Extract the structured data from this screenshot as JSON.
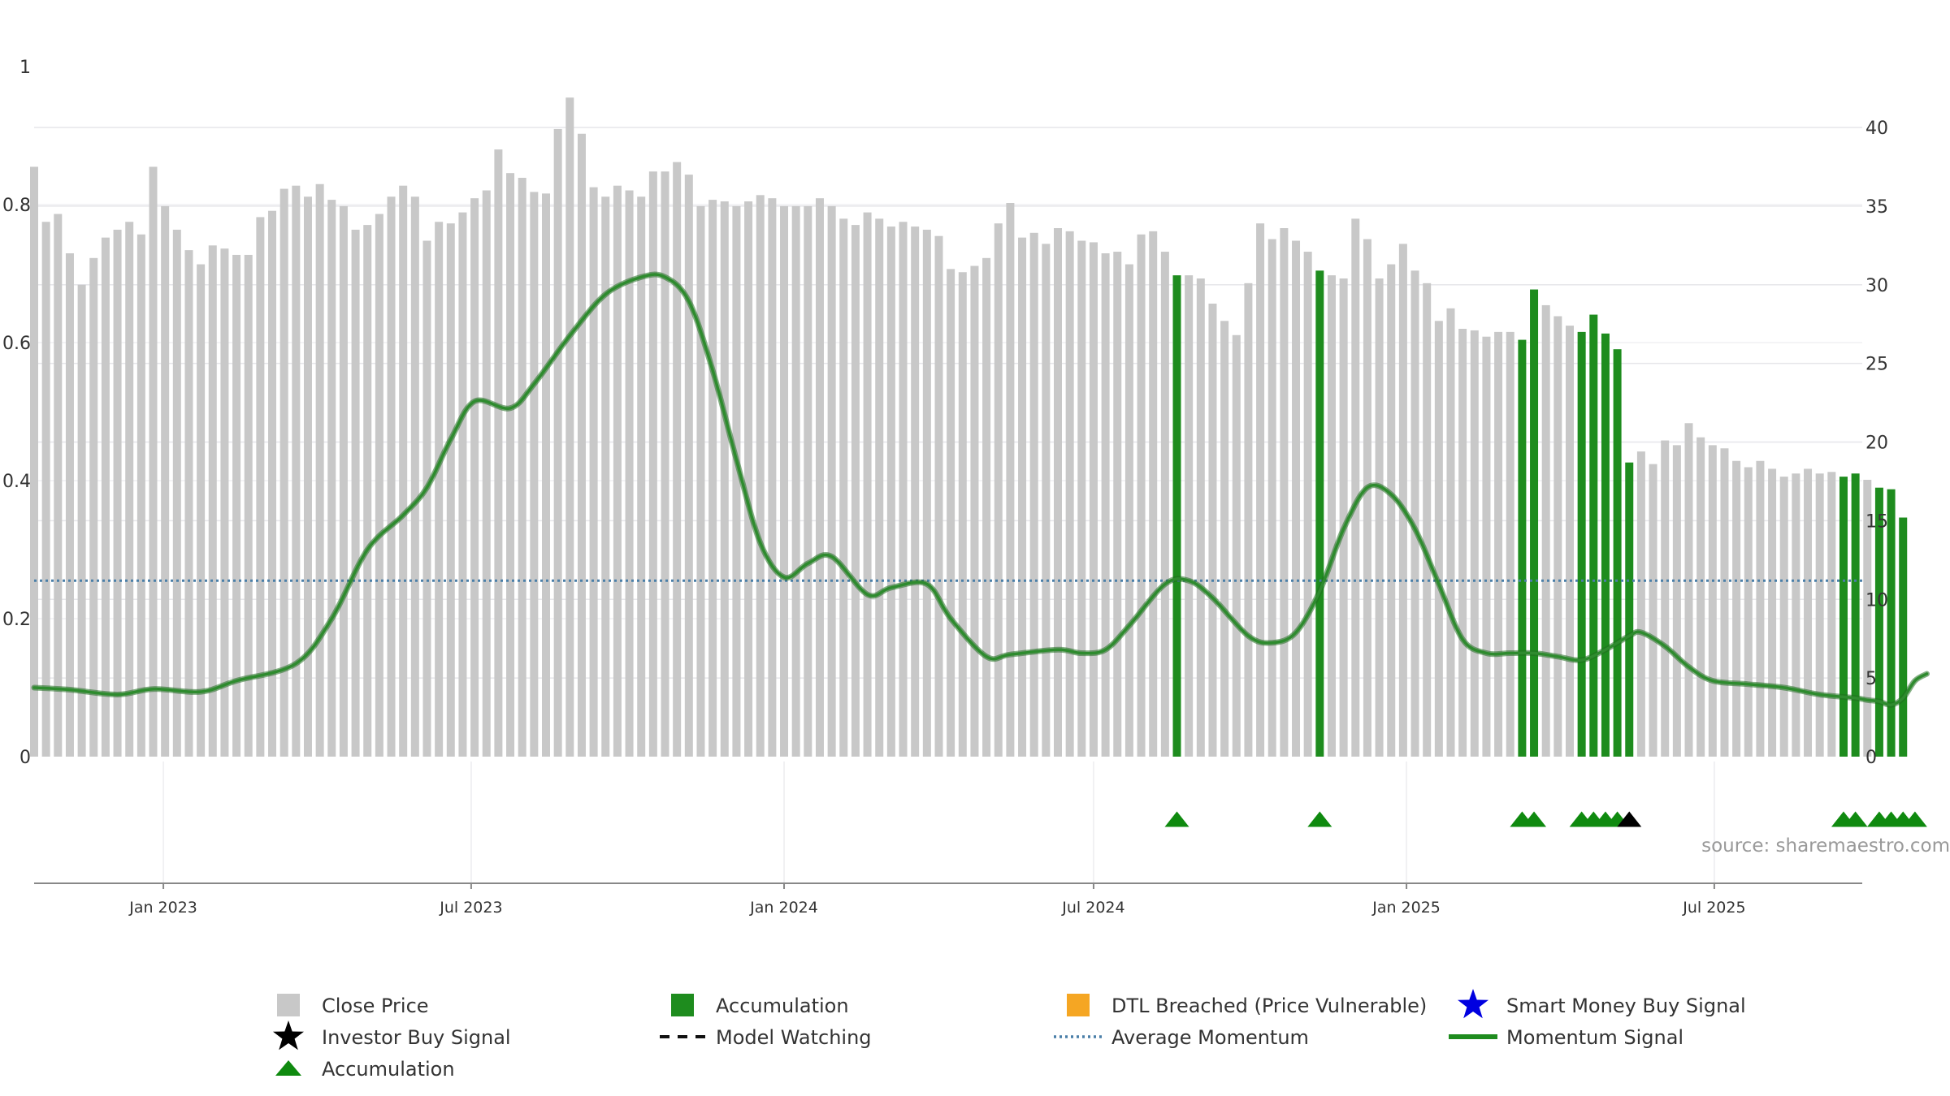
{
  "chart_data": {
    "type": "bar",
    "title": "",
    "colors": {
      "close_price": "#c8c8c8",
      "accumulation_bar": "#1e8c1e",
      "momentum_line": "#2e8b2e",
      "average_momentum": "#4a7fa8",
      "accumulation_marker": "#0f8a0f",
      "investor_marker": "#000000",
      "dtl_marker": "#f5a623",
      "smart_money_marker": "#0000e0"
    },
    "left_axis": {
      "range": [
        0,
        1
      ],
      "ticks": [
        "0",
        "0.2",
        "0.4",
        "0.6",
        "0.8",
        "1"
      ]
    },
    "right_axis": {
      "range": [
        0,
        44
      ],
      "ticks": [
        "0",
        "5",
        "10",
        "15",
        "20",
        "25",
        "30",
        "35",
        "40"
      ]
    },
    "x_axis": {
      "start": "2022-10-17",
      "end": "2025-09-26",
      "ticks": [
        {
          "date": "2023-01-01",
          "label": "Jan 2023"
        },
        {
          "date": "2023-07-01",
          "label": "Jul 2023"
        },
        {
          "date": "2024-01-01",
          "label": "Jan 2024"
        },
        {
          "date": "2024-07-01",
          "label": "Jul 2024"
        },
        {
          "date": "2025-01-01",
          "label": "Jan 2025"
        },
        {
          "date": "2025-07-01",
          "label": "Jul 2025"
        }
      ]
    },
    "first_bar_date": "2022-10-17",
    "bar_interval_days": 7,
    "close_price": [
      37.5,
      34.0,
      34.5,
      32.0,
      30.0,
      31.7,
      33.0,
      33.5,
      34.0,
      33.2,
      37.5,
      35.0,
      33.5,
      32.2,
      31.3,
      32.5,
      32.3,
      31.9,
      31.9,
      34.3,
      34.7,
      36.1,
      36.3,
      35.6,
      36.4,
      35.4,
      35.0,
      33.5,
      33.8,
      34.5,
      35.6,
      36.3,
      35.6,
      32.8,
      34.0,
      33.9,
      34.6,
      35.5,
      36.0,
      38.6,
      37.1,
      36.8,
      35.9,
      35.8,
      39.9,
      41.9,
      39.6,
      36.2,
      35.6,
      36.3,
      36.0,
      35.6,
      37.2,
      37.2,
      37.8,
      37.0,
      35.0,
      35.4,
      35.3,
      35.0,
      35.3,
      35.7,
      35.5,
      35.0,
      35.0,
      35.0,
      35.5,
      35.0,
      34.2,
      33.8,
      34.6,
      34.2,
      33.7,
      34.0,
      33.7,
      33.5,
      33.1,
      31.0,
      30.8,
      31.2,
      31.7,
      33.9,
      35.2,
      33.0,
      33.3,
      32.6,
      33.6,
      33.4,
      32.8,
      32.7,
      32.0,
      32.1,
      31.3,
      33.2,
      33.4,
      32.1,
      30.6,
      30.6,
      30.4,
      28.8,
      27.7,
      26.8,
      30.1,
      33.9,
      32.9,
      33.6,
      32.8,
      32.1,
      30.9,
      30.6,
      30.4,
      34.2,
      32.9,
      30.4,
      31.3,
      32.6,
      30.9,
      30.1,
      27.7,
      28.5,
      27.2,
      27.1,
      26.7,
      27.0,
      27.0,
      26.5,
      29.7,
      28.7,
      28.0,
      27.4,
      27.0,
      28.1,
      26.9,
      25.9,
      18.7,
      19.4,
      18.6,
      20.1,
      19.8,
      21.2,
      20.3,
      19.8,
      19.6,
      18.8,
      18.4,
      18.8,
      18.3,
      17.8,
      18.0,
      18.3,
      18.0,
      18.1,
      17.8,
      18.0,
      17.6,
      17.1,
      17.0,
      15.2
    ],
    "accumulation_weeks": [
      96,
      108,
      125,
      126,
      130,
      131,
      132,
      133,
      134,
      152,
      153,
      155,
      156,
      157
    ],
    "momentum_signal": [
      [
        0,
        0.1
      ],
      [
        3,
        0.097
      ],
      [
        7,
        0.09
      ],
      [
        10,
        0.098
      ],
      [
        14,
        0.094
      ],
      [
        17,
        0.11
      ],
      [
        22,
        0.135
      ],
      [
        25,
        0.2
      ],
      [
        28,
        0.3
      ],
      [
        31,
        0.35
      ],
      [
        33,
        0.39
      ],
      [
        35,
        0.46
      ],
      [
        37,
        0.515
      ],
      [
        40,
        0.505
      ],
      [
        42,
        0.54
      ],
      [
        45,
        0.61
      ],
      [
        48,
        0.67
      ],
      [
        51,
        0.695
      ],
      [
        53,
        0.695
      ],
      [
        55,
        0.66
      ],
      [
        57,
        0.56
      ],
      [
        59,
        0.43
      ],
      [
        61,
        0.31
      ],
      [
        63,
        0.26
      ],
      [
        65,
        0.28
      ],
      [
        67,
        0.29
      ],
      [
        70,
        0.235
      ],
      [
        72,
        0.245
      ],
      [
        75,
        0.25
      ],
      [
        77,
        0.2
      ],
      [
        80,
        0.145
      ],
      [
        82,
        0.148
      ],
      [
        86,
        0.155
      ],
      [
        88,
        0.15
      ],
      [
        90,
        0.155
      ],
      [
        92,
        0.19
      ],
      [
        95,
        0.25
      ],
      [
        97,
        0.255
      ],
      [
        99,
        0.23
      ],
      [
        102,
        0.175
      ],
      [
        104,
        0.165
      ],
      [
        106,
        0.18
      ],
      [
        108,
        0.24
      ],
      [
        110,
        0.33
      ],
      [
        112,
        0.39
      ],
      [
        114,
        0.38
      ],
      [
        116,
        0.33
      ],
      [
        118,
        0.25
      ],
      [
        120,
        0.17
      ],
      [
        122,
        0.15
      ],
      [
        124,
        0.15
      ],
      [
        126,
        0.15
      ],
      [
        128,
        0.145
      ],
      [
        130,
        0.14
      ],
      [
        132,
        0.155
      ],
      [
        134,
        0.175
      ],
      [
        135,
        0.18
      ],
      [
        137,
        0.16
      ],
      [
        139,
        0.13
      ],
      [
        141,
        0.11
      ],
      [
        144,
        0.105
      ],
      [
        147,
        0.1
      ],
      [
        150,
        0.09
      ],
      [
        153,
        0.085
      ],
      [
        154,
        0.082
      ],
      [
        155,
        0.08
      ],
      [
        156,
        0.075
      ],
      [
        157,
        0.085
      ],
      [
        158,
        0.11
      ],
      [
        159,
        0.12
      ]
    ],
    "average_momentum": 0.255,
    "markers": [
      {
        "type": "accumulation",
        "week": 96
      },
      {
        "type": "accumulation",
        "week": 108
      },
      {
        "type": "accumulation",
        "week": 125
      },
      {
        "type": "accumulation",
        "week": 126
      },
      {
        "type": "accumulation",
        "week": 130
      },
      {
        "type": "accumulation",
        "week": 131
      },
      {
        "type": "accumulation",
        "week": 132
      },
      {
        "type": "accumulation",
        "week": 133
      },
      {
        "type": "investor_buy",
        "week": 134
      },
      {
        "type": "accumulation",
        "week": 152
      },
      {
        "type": "accumulation",
        "week": 153
      },
      {
        "type": "accumulation",
        "week": 155
      },
      {
        "type": "accumulation",
        "week": 156
      },
      {
        "type": "accumulation",
        "week": 157
      },
      {
        "type": "accumulation",
        "week": 158
      }
    ],
    "source_text": "source: sharemaestro.com",
    "legend": [
      {
        "key": "close_price",
        "label": "Close Price",
        "symbol": "square-gray"
      },
      {
        "key": "accumulation_bar",
        "label": "Accumulation",
        "symbol": "square-green"
      },
      {
        "key": "dtl",
        "label": "DTL Breached (Price Vulnerable)",
        "symbol": "square-orange"
      },
      {
        "key": "smart_money",
        "label": "Smart Money Buy Signal",
        "symbol": "star-blue"
      },
      {
        "key": "investor_buy",
        "label": "Investor Buy Signal",
        "symbol": "star-black"
      },
      {
        "key": "model_watching",
        "label": "Model Watching",
        "symbol": "dash-black"
      },
      {
        "key": "average_momentum",
        "label": "Average Momentum",
        "symbol": "dot-blue"
      },
      {
        "key": "momentum_signal",
        "label": "Momentum Signal",
        "symbol": "line-green"
      },
      {
        "key": "accumulation_marker",
        "label": "Accumulation",
        "symbol": "triangle-green"
      }
    ]
  }
}
